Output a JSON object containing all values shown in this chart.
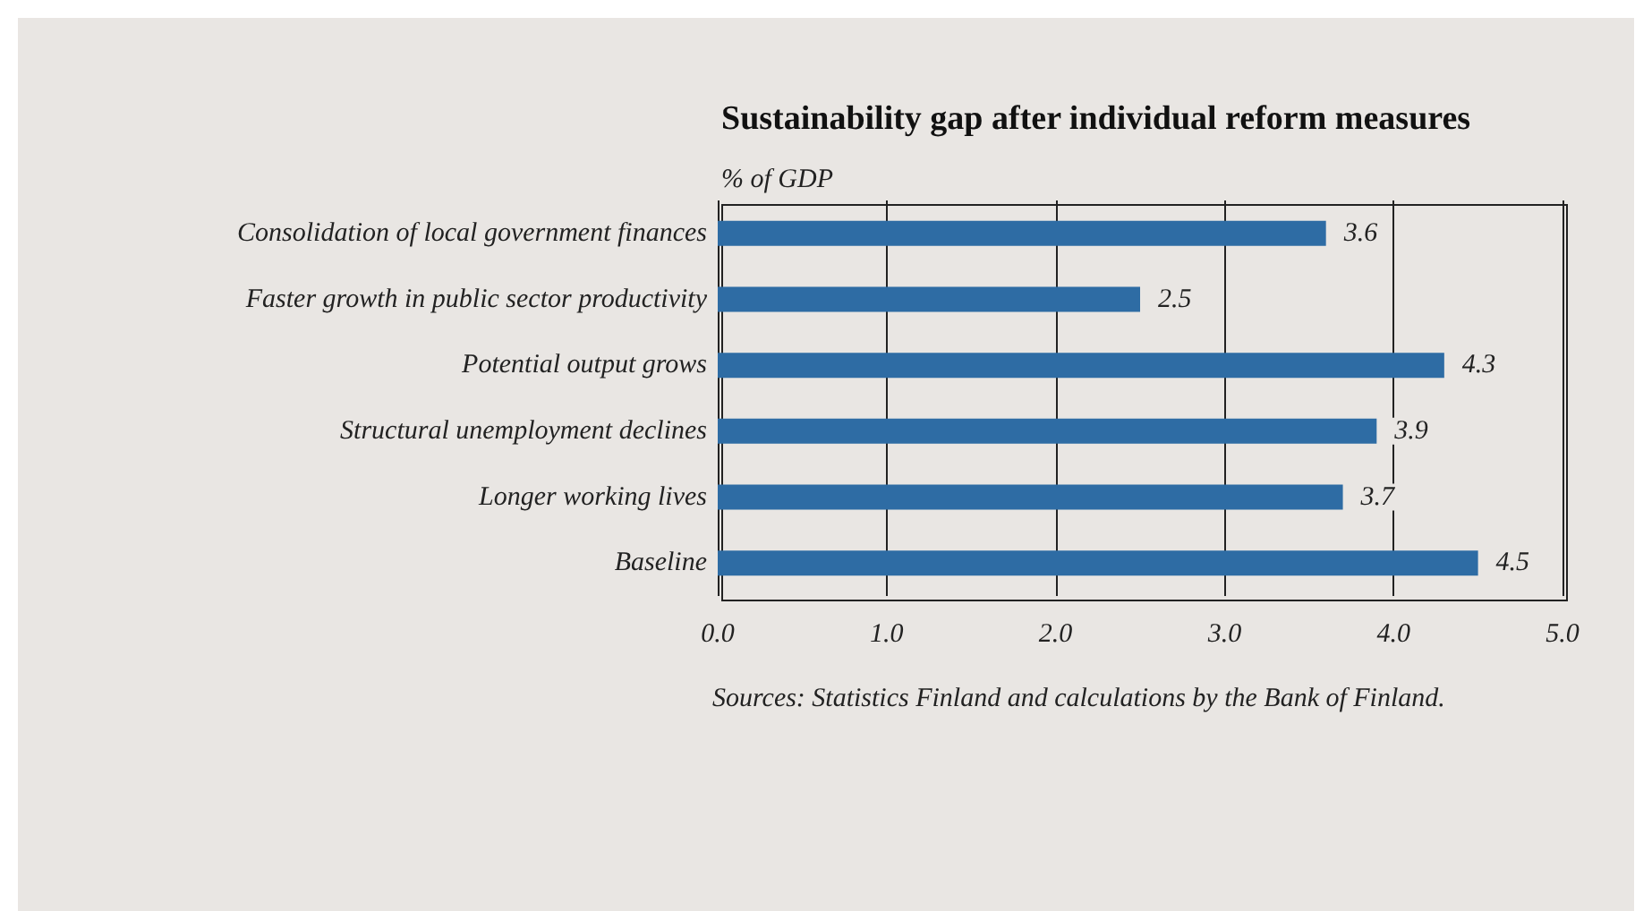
{
  "chart_data": {
    "type": "bar",
    "orientation": "horizontal",
    "title": "Sustainability gap after individual reform measures",
    "xlabel": "% of GDP",
    "categories": [
      "Consolidation of local government finances",
      "Faster growth in public sector productivity",
      "Potential output grows",
      "Structural unemployment declines",
      "Longer working lives",
      "Baseline"
    ],
    "values": [
      3.6,
      2.5,
      4.3,
      3.9,
      3.7,
      4.5
    ],
    "color": "#2e6ca4",
    "data_labels": true,
    "xlim": [
      0,
      5
    ],
    "xticks": [
      {
        "value": 0,
        "label": "0.0"
      },
      {
        "value": 1,
        "label": "1.0"
      },
      {
        "value": 2,
        "label": "2.0"
      },
      {
        "value": 3,
        "label": "3.0"
      },
      {
        "value": 4,
        "label": "4.0"
      },
      {
        "value": 5,
        "label": "5.0"
      }
    ],
    "grid": "x",
    "annotations": [
      "Sources: Statistics Finland and calculations by the Bank of Finland."
    ]
  }
}
